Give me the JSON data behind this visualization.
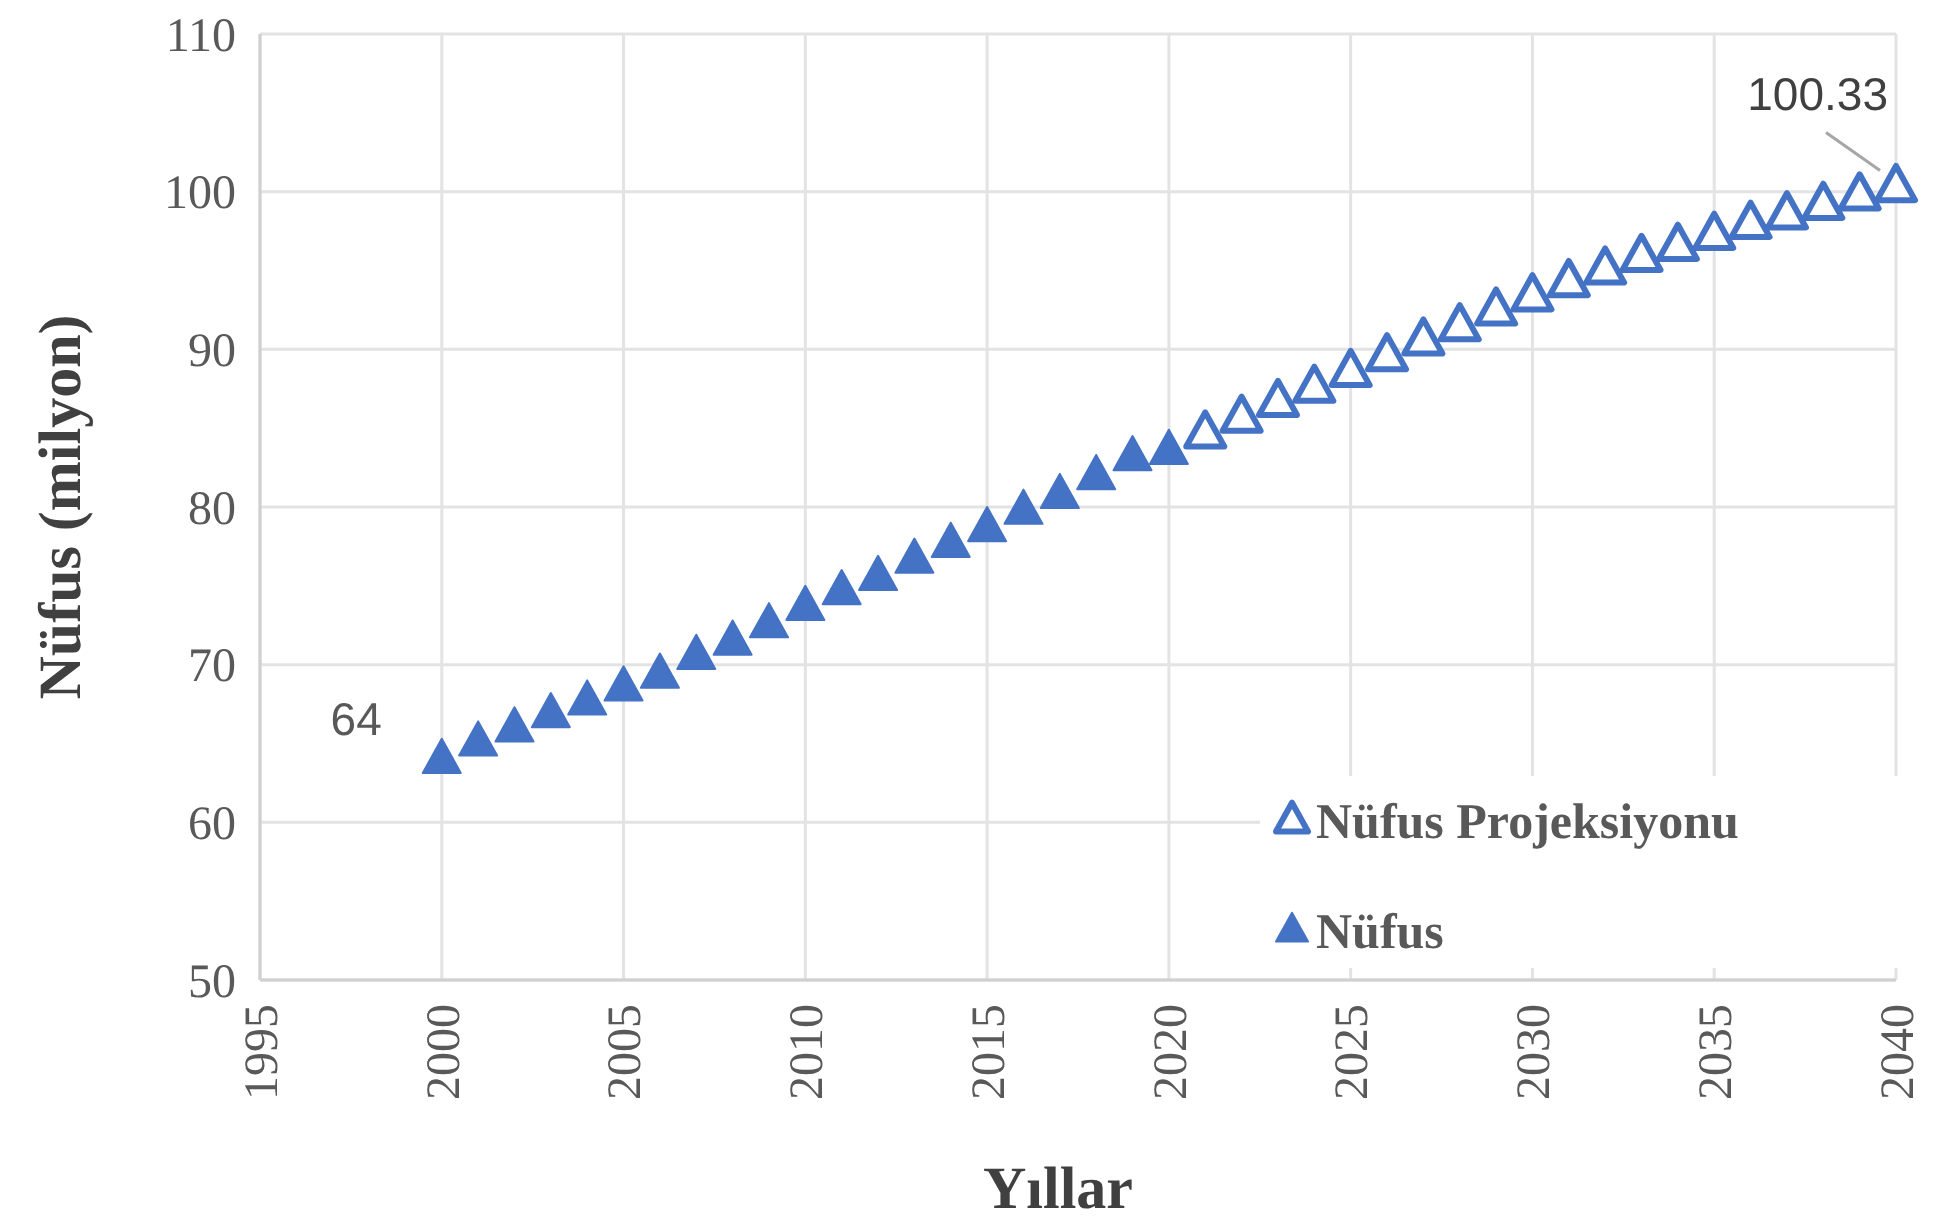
{
  "chart_data": {
    "type": "scatter",
    "xlabel": "Yıllar",
    "ylabel": "Nüfus (milyon)",
    "xlim": [
      1995,
      2040
    ],
    "xticks": [
      1995,
      2000,
      2005,
      2010,
      2015,
      2020,
      2025,
      2030,
      2035,
      2040
    ],
    "ylim": [
      50,
      110
    ],
    "yticks": [
      50,
      60,
      70,
      80,
      90,
      100,
      110
    ],
    "grid": true,
    "legend": "bottom right",
    "marker": "triangle",
    "series": [
      {
        "name": "Nüfus Projeksiyonu",
        "color": "#4472c4",
        "x": [
          2021,
          2022,
          2023,
          2024,
          2025,
          2026,
          2027,
          2028,
          2029,
          2030,
          2031,
          2032,
          2033,
          2034,
          2035,
          2036,
          2037,
          2038,
          2039,
          2040
        ],
        "values": [
          84.7,
          85.7,
          86.7,
          87.6,
          88.6,
          89.6,
          90.6,
          91.5,
          92.5,
          93.4,
          94.3,
          95.1,
          95.9,
          96.6,
          97.3,
          98.0,
          98.6,
          99.2,
          99.8,
          100.33
        ],
        "value_labels": [
          null,
          null,
          null,
          null,
          null,
          null,
          null,
          null,
          null,
          null,
          null,
          null,
          null,
          null,
          null,
          null,
          null,
          null,
          null,
          "100.33"
        ]
      },
      {
        "name": "Nüfus",
        "color": "#4472c4",
        "x": [
          2000,
          2001,
          2002,
          2003,
          2004,
          2005,
          2006,
          2007,
          2008,
          2009,
          2010,
          2011,
          2012,
          2013,
          2014,
          2015,
          2016,
          2017,
          2018,
          2019,
          2020
        ],
        "values": [
          64.0,
          65.1,
          66.0,
          66.9,
          67.7,
          68.6,
          69.4,
          70.6,
          71.5,
          72.6,
          73.7,
          74.7,
          75.6,
          76.7,
          77.7,
          78.7,
          79.8,
          80.8,
          82.0,
          83.2,
          83.6
        ],
        "value_labels": [
          "64",
          null,
          null,
          null,
          null,
          null,
          null,
          null,
          null,
          null,
          null,
          null,
          null,
          null,
          null,
          null,
          null,
          null,
          null,
          null,
          null
        ]
      }
    ]
  }
}
